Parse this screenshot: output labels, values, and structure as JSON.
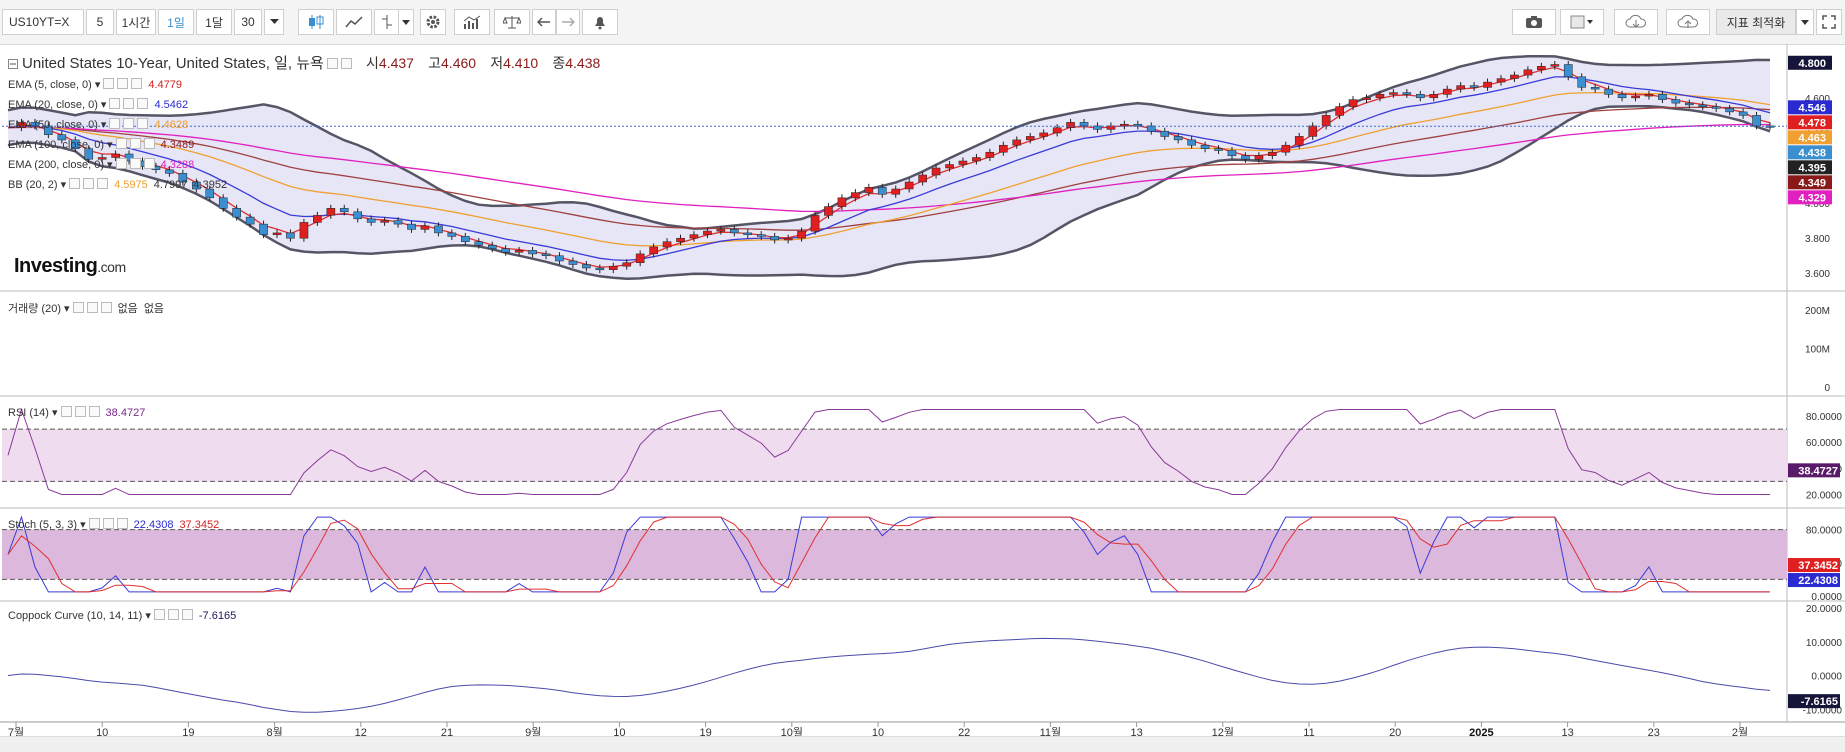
{
  "toolbar": {
    "symbol": "US10YT=X",
    "interval_buttons": [
      "5",
      "1시간",
      "1일",
      "1달",
      "30"
    ],
    "active_interval": "1일",
    "optimize_label": "지표 최적화"
  },
  "main": {
    "title": "United States 10-Year, United States, 일, 뉴욕",
    "ohlc": [
      {
        "k": "시",
        "v": "4.437"
      },
      {
        "k": "고",
        "v": "4.460"
      },
      {
        "k": "저",
        "v": "4.410"
      },
      {
        "k": "종",
        "v": "4.438"
      }
    ],
    "indicators": [
      {
        "label": "EMA (5, close, 0)",
        "values": [
          "4.4779"
        ],
        "colors": [
          "#d32020"
        ]
      },
      {
        "label": "EMA (20, close, 0)",
        "values": [
          "4.5462"
        ],
        "colors": [
          "#2a2ad0"
        ]
      },
      {
        "label": "EMA (50, close, 0)",
        "values": [
          "4.4628"
        ],
        "colors": [
          "#f0a030"
        ]
      },
      {
        "label": "EMA (100, close, 0)",
        "values": [
          "4.3489"
        ],
        "colors": [
          "#8a1a1a"
        ]
      },
      {
        "label": "EMA (200, close, 0)",
        "values": [
          "4.3288"
        ],
        "colors": [
          "#e020c0"
        ]
      },
      {
        "label": "BB (20, 2)",
        "values": [
          "4.5975",
          "4.7997",
          "4.3952"
        ],
        "colors": [
          "#f0a030",
          "#222222",
          "#222222"
        ]
      }
    ],
    "logo": {
      "brand": "Investing",
      "suffix": ".com"
    },
    "y_ticks": [
      "4.800",
      "4.600",
      "4.400",
      "4.200",
      "4.000",
      "3.800",
      "3.600"
    ],
    "y_badges": [
      {
        "text": "4.800",
        "value": 4.8,
        "color": "#15153a"
      },
      {
        "text": "4.546",
        "value": 4.546,
        "color": "#2a2ad0"
      },
      {
        "text": "4.478",
        "value": 4.478,
        "color": "#e02020"
      },
      {
        "text": "4.463",
        "value": 4.463,
        "color": "#f0a030"
      },
      {
        "text": "4.438",
        "value": 4.438,
        "color": "#3a8fd0"
      },
      {
        "text": "4.395",
        "value": 4.395,
        "color": "#222222"
      },
      {
        "text": "4.349",
        "value": 4.349,
        "color": "#8a1a1a"
      },
      {
        "text": "4.329",
        "value": 4.329,
        "color": "#e020c0"
      }
    ]
  },
  "volume": {
    "label": "거래량 (20)",
    "values": [
      "없음",
      "없음"
    ],
    "y_ticks": [
      "200M",
      "100M",
      "0"
    ]
  },
  "rsi": {
    "label": "RSI (14)",
    "value": "38.4727",
    "y_ticks": [
      "80.0000",
      "60.0000",
      "40.0000",
      "20.0000"
    ],
    "badge": "38.4727",
    "color": "#7a2a8a"
  },
  "stoch": {
    "label": "Stoch (5, 3, 3)",
    "values": [
      "22.4308",
      "37.3452"
    ],
    "colors": [
      "#2a2ad0",
      "#d32020"
    ],
    "y_ticks": [
      "80.0000",
      "40.0000",
      "0.0000"
    ],
    "badges": [
      "37.3452",
      "22.4308"
    ]
  },
  "coppock": {
    "label": "Coppock Curve (10, 14, 11)",
    "value": "-7.6165",
    "y_ticks": [
      "20.0000",
      "10.0000",
      "0.0000",
      "-10.0000"
    ],
    "badge": "-7.6165"
  },
  "x_axis": [
    "7월",
    "10",
    "19",
    "8월",
    "12",
    "21",
    "9월",
    "10",
    "19",
    "10월",
    "10",
    "22",
    "11월",
    "13",
    "12월",
    "11",
    "20",
    "2025",
    "13",
    "23",
    "2월"
  ],
  "chart_data": {
    "type": "candlestick",
    "close": [
      4.43,
      4.46,
      4.44,
      4.39,
      4.36,
      4.31,
      4.25,
      4.26,
      4.28,
      4.24,
      4.21,
      4.19,
      4.17,
      4.12,
      4.08,
      4.03,
      3.97,
      3.92,
      3.88,
      3.82,
      3.83,
      3.8,
      3.89,
      3.93,
      3.97,
      3.95,
      3.91,
      3.89,
      3.9,
      3.88,
      3.85,
      3.87,
      3.83,
      3.81,
      3.78,
      3.76,
      3.74,
      3.72,
      3.73,
      3.71,
      3.7,
      3.67,
      3.65,
      3.63,
      3.62,
      3.64,
      3.66,
      3.71,
      3.75,
      3.78,
      3.8,
      3.82,
      3.84,
      3.85,
      3.83,
      3.82,
      3.81,
      3.79,
      3.8,
      3.84,
      3.93,
      3.98,
      4.03,
      4.06,
      4.09,
      4.05,
      4.08,
      4.12,
      4.16,
      4.2,
      4.22,
      4.24,
      4.26,
      4.29,
      4.33,
      4.36,
      4.38,
      4.4,
      4.43,
      4.46,
      4.44,
      4.42,
      4.44,
      4.45,
      4.44,
      4.41,
      4.38,
      4.36,
      4.33,
      4.31,
      4.3,
      4.27,
      4.25,
      4.27,
      4.29,
      4.33,
      4.38,
      4.44,
      4.5,
      4.55,
      4.59,
      4.6,
      4.62,
      4.63,
      4.62,
      4.6,
      4.62,
      4.65,
      4.67,
      4.66,
      4.69,
      4.71,
      4.73,
      4.76,
      4.78,
      4.79,
      4.72,
      4.66,
      4.65,
      4.62,
      4.6,
      4.61,
      4.62,
      4.59,
      4.57,
      4.56,
      4.55,
      4.54,
      4.52,
      4.5,
      4.44,
      4.438
    ],
    "ema5": 4.4779,
    "ema20": 4.5462,
    "ema50": 4.4628,
    "ema100": 4.3489,
    "ema200": 4.3288,
    "bb": {
      "mid": 4.5975,
      "upper": 4.7997,
      "lower": 4.3952
    },
    "ylim": [
      3.55,
      4.85
    ]
  }
}
